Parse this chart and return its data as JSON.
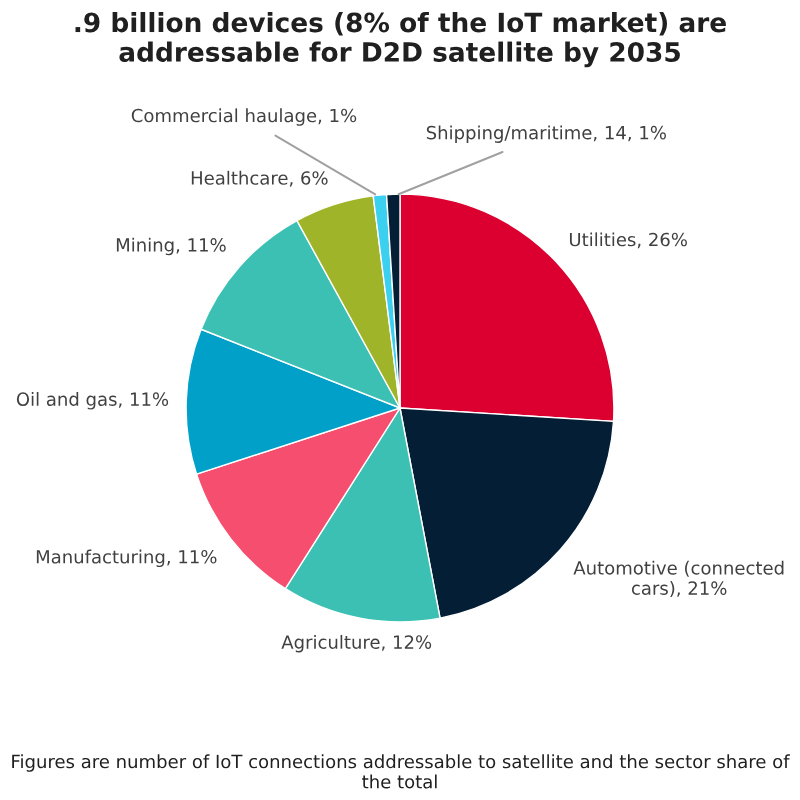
{
  "chart_data": {
    "type": "pie",
    "title": ".9 billion devices (8% of the IoT market) are addressable for D2D satellite by 2035",
    "categories": [
      "Utilities",
      "Automotive (connected cars)",
      "Agriculture",
      "Manufacturing",
      "Oil and gas",
      "Mining",
      "Healthcare",
      "Commercial haulage",
      "Shipping/maritime, 14"
    ],
    "values": [
      26,
      21,
      12,
      11,
      11,
      11,
      6,
      1,
      1
    ],
    "value_labels": [
      "26%",
      "21%",
      "12%",
      "11%",
      "11%",
      "11%",
      "6%",
      "1%",
      "1%"
    ],
    "colors": [
      "#dc0030",
      "#041e36",
      "#3cc0b4",
      "#f64e6e",
      "#00a0c8",
      "#3cc0b4",
      "#a0b42a",
      "#3cd0f0",
      "#041e36"
    ],
    "annotations": [
      "Figures are number of IoT connections addressable to satellite and the sector share of the total"
    ]
  }
}
